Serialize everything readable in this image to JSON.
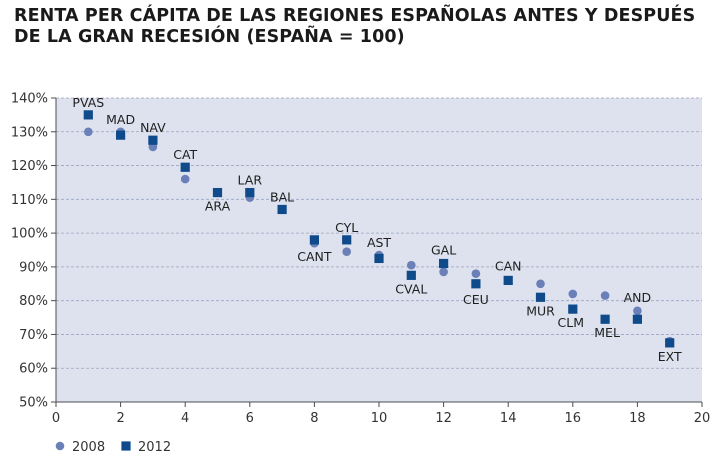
{
  "title_line1": "RENTA PER CÁPITA DE LAS REGIONES ESPAÑOLAS ANTES Y DESPUÉS",
  "title_line2": "DE LA GRAN RECESIÓN (ESPAÑA = 100)",
  "colors": {
    "plot_bg": "#dde2ee",
    "grid": "#9aa4bf",
    "axis": "#4d4d4d",
    "series_2008": "#6b7fb8",
    "series_2012": "#0f4a8a"
  },
  "chart_data": {
    "type": "scatter",
    "title": "RENTA PER CÁPITA DE LAS REGIONES ESPAÑOLAS ANTES Y DESPUÉS DE LA GRAN RECESIÓN (ESPAÑA = 100)",
    "xlabel": "",
    "ylabel": "",
    "xlim": [
      0,
      20
    ],
    "ylim": [
      50,
      140
    ],
    "x_ticks": [
      0,
      2,
      4,
      6,
      8,
      10,
      12,
      14,
      16,
      18,
      20
    ],
    "y_ticks": [
      50,
      60,
      70,
      80,
      90,
      100,
      110,
      120,
      130,
      140
    ],
    "y_tick_labels": [
      "50%",
      "60%",
      "70%",
      "80%",
      "90%",
      "100%",
      "110%",
      "120%",
      "130%",
      "140%"
    ],
    "grid": "horizontal-dashed",
    "legend_position": "bottom-left",
    "series": [
      {
        "name": "2008",
        "marker": "circle",
        "x": [
          1,
          2,
          3,
          4,
          5,
          6,
          7,
          8,
          9,
          10,
          11,
          12,
          13,
          14,
          15,
          16,
          17,
          18,
          19
        ],
        "y": [
          130,
          130,
          125.5,
          116,
          112,
          110.5,
          107,
          97,
          94.5,
          93.5,
          90.5,
          88.5,
          88,
          86,
          85,
          82,
          81.5,
          77,
          68
        ]
      },
      {
        "name": "2012",
        "marker": "square",
        "x": [
          1,
          2,
          3,
          4,
          5,
          6,
          7,
          8,
          9,
          10,
          11,
          12,
          13,
          14,
          15,
          16,
          17,
          18,
          19
        ],
        "y": [
          135,
          129,
          127.5,
          119.5,
          112,
          112,
          107,
          98,
          98,
          92.5,
          87.5,
          91,
          85,
          86,
          81,
          77.5,
          74.5,
          74.5,
          67.5
        ]
      }
    ],
    "point_labels": [
      {
        "text": "PVAS",
        "x": 1
      },
      {
        "text": "MAD",
        "x": 2
      },
      {
        "text": "NAV",
        "x": 3
      },
      {
        "text": "CAT",
        "x": 4
      },
      {
        "text": "ARA",
        "x": 5
      },
      {
        "text": "LAR",
        "x": 6
      },
      {
        "text": "BAL",
        "x": 7
      },
      {
        "text": "CANT",
        "x": 8
      },
      {
        "text": "CYL",
        "x": 9
      },
      {
        "text": "AST",
        "x": 10
      },
      {
        "text": "CVAL",
        "x": 11
      },
      {
        "text": "GAL",
        "x": 12
      },
      {
        "text": "CEU",
        "x": 13
      },
      {
        "text": "CAN",
        "x": 14
      },
      {
        "text": "MUR",
        "x": 15
      },
      {
        "text": "CLM",
        "x": 16
      },
      {
        "text": "MEL",
        "x": 17
      },
      {
        "text": "AND",
        "x": 18
      },
      {
        "text": "EXT",
        "x": 19
      }
    ],
    "legend": [
      {
        "label": "2008",
        "marker": "circle"
      },
      {
        "label": "2012",
        "marker": "square"
      }
    ]
  }
}
